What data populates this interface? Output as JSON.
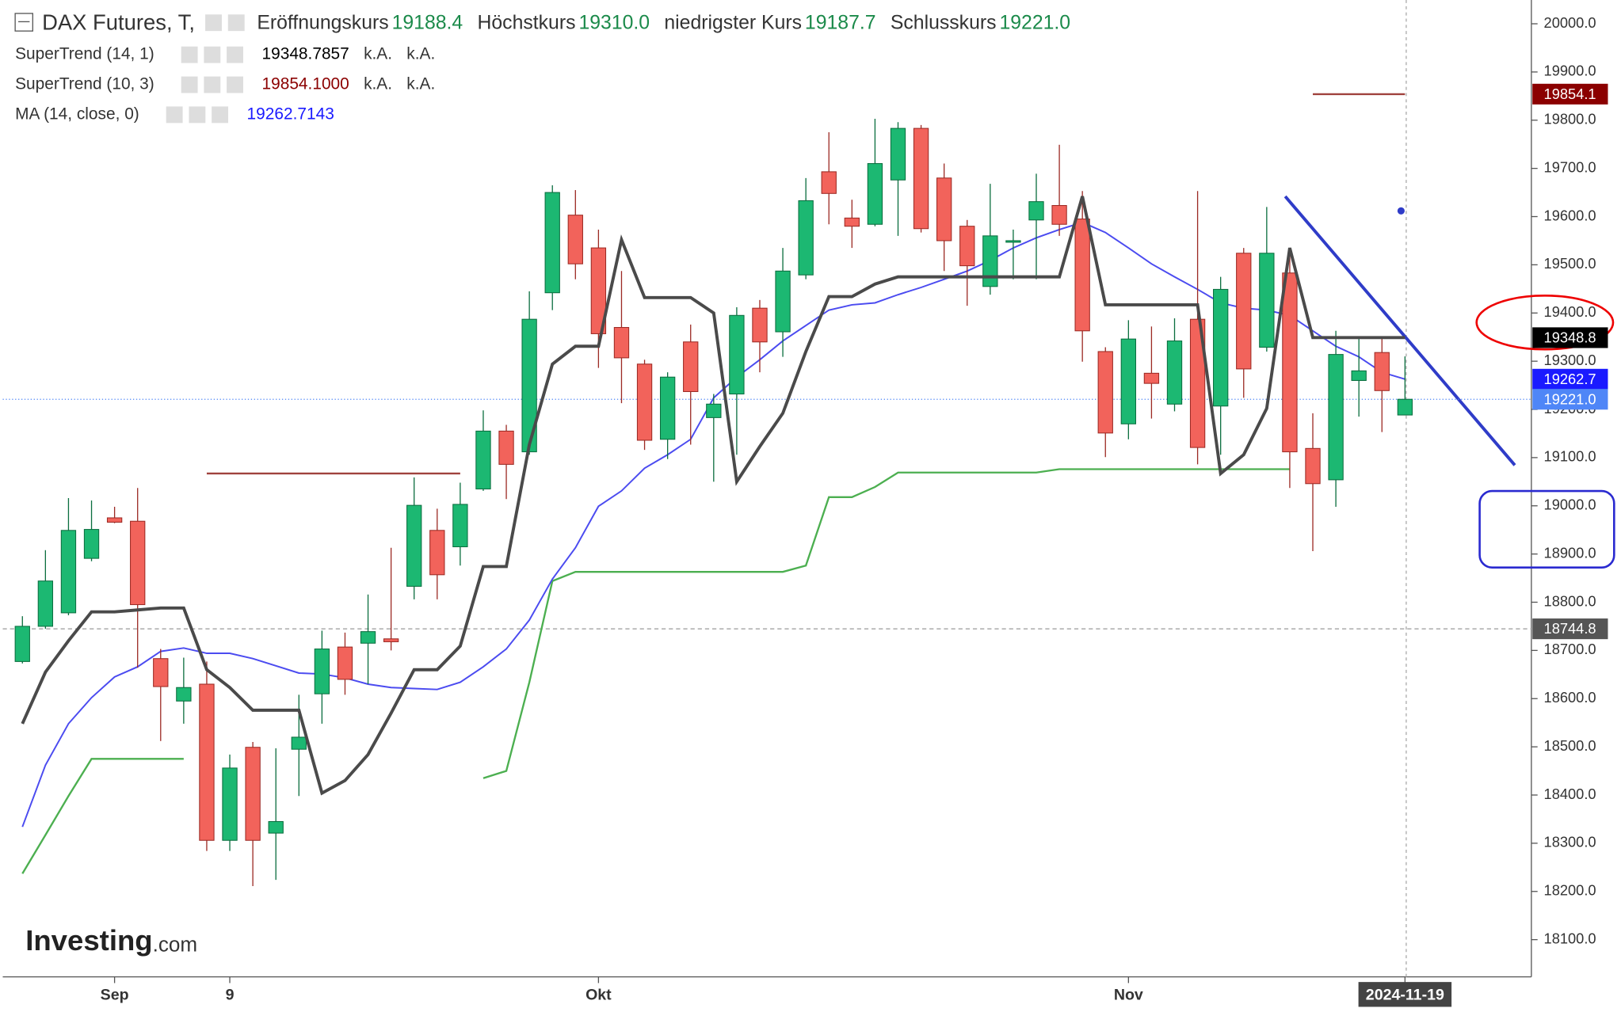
{
  "chart_data": {
    "type": "candlestick",
    "instrument": "DAX Futures, T,",
    "header": [
      {
        "label": "Eröffnungskurs",
        "value": "19188.4"
      },
      {
        "label": "Höchstkurs",
        "value": "19310.0"
      },
      {
        "label": "niedrigster Kurs",
        "value": "19187.7"
      },
      {
        "label": "Schlusskurs",
        "value": "19221.0"
      }
    ],
    "categories": [
      null,
      null,
      null,
      null,
      "Sep",
      null,
      null,
      null,
      null,
      "9",
      null,
      null,
      null,
      null,
      null,
      null,
      null,
      null,
      null,
      null,
      null,
      null,
      null,
      null,
      null,
      "Okt",
      null,
      null,
      null,
      null,
      null,
      null,
      null,
      null,
      null,
      null,
      null,
      null,
      null,
      null,
      null,
      null,
      null,
      null,
      null,
      null,
      null,
      null,
      "Nov",
      null,
      null,
      null,
      null,
      null,
      null,
      null,
      null,
      null,
      null,
      null,
      "2024-11-19"
    ],
    "open": [
      18677,
      18750,
      18778,
      18891,
      18975,
      18968,
      18683,
      18595,
      18630,
      18306,
      18499,
      18321,
      18495,
      18610,
      18707,
      18715,
      18724,
      18833,
      18949,
      18915,
      19035,
      19155,
      19112,
      19442,
      19603,
      19535,
      19370,
      19294,
      19138,
      19340,
      19183,
      19232,
      19410,
      19361,
      19479,
      19693,
      19597,
      19584,
      19676,
      19783,
      19680,
      19580,
      19455,
      19548,
      19593,
      19623,
      19595,
      19320,
      19170,
      19275,
      19211,
      19387,
      19207,
      19524,
      19329,
      19483,
      19119,
      19054,
      19260,
      19318,
      19188.4
    ],
    "high": [
      18771,
      18908,
      19016,
      19011,
      18998,
      19037,
      18703,
      18685,
      18677,
      18484,
      18510,
      18497,
      18608,
      18741,
      18737,
      18816,
      18913,
      19059,
      18994,
      19048,
      19198,
      19168,
      19445,
      19665,
      19655,
      19573,
      19487,
      19303,
      19277,
      19376,
      19232,
      19412,
      19427,
      19535,
      19680,
      19775,
      19635,
      19803,
      19796,
      19790,
      19710,
      19593,
      19668,
      19573,
      19689,
      19749,
      19653,
      19329,
      19385,
      19372,
      19389,
      19653,
      19475,
      19535,
      19620,
      19535,
      19192,
      19363,
      19352,
      19352,
      19310
    ],
    "low": [
      18673,
      18745,
      18773,
      18885,
      18964,
      18664,
      18512,
      18548,
      18284,
      18284,
      18211,
      18224,
      18398,
      18548,
      18608,
      18630,
      18700,
      18806,
      18806,
      18876,
      19031,
      19014,
      19106,
      19406,
      19470,
      19286,
      19213,
      19116,
      19097,
      19127,
      19050,
      19106,
      19277,
      19309,
      19470,
      19584,
      19535,
      19580,
      19560,
      19567,
      19487,
      19415,
      19438,
      19470,
      19470,
      19560,
      19299,
      19101,
      19138,
      19181,
      19196,
      19086,
      19106,
      19224,
      19320,
      19037,
      18906,
      18998,
      19185,
      19153,
      19187.7
    ],
    "close": [
      18750,
      18844,
      18949,
      18951,
      18966,
      18795,
      18625,
      18623,
      18306,
      18456,
      18306,
      18345,
      18520,
      18703,
      18640,
      18739,
      18718,
      19001,
      18857,
      19003,
      19155,
      19086,
      19387,
      19650,
      19502,
      19357,
      19307,
      19136,
      19267,
      19237,
      19211,
      19395,
      19340,
      19487,
      19633,
      19648,
      19580,
      19710,
      19783,
      19575,
      19550,
      19498,
      19560,
      19550,
      19631,
      19584,
      19363,
      19151,
      19346,
      19254,
      19342,
      19121,
      19449,
      19284,
      19524,
      19112,
      19046,
      19314,
      19280,
      19239,
      19221
    ],
    "up_color": "#1cb872",
    "down_color": "#f2635b",
    "indicators": [
      {
        "name": "SuperTrend (14, 1)",
        "legend_value": "19348.7857",
        "legend_extra": [
          "k.A.",
          "k.A."
        ],
        "color": "#4a4a4a",
        "values": [
          18548,
          18655,
          18720,
          18780,
          18780,
          18784,
          18788,
          18788,
          18660,
          18623,
          18576,
          18576,
          18576,
          18404,
          18430,
          18484,
          18570,
          18660,
          18660,
          18709,
          18874,
          18874,
          19127,
          19294,
          19331,
          19331,
          19552,
          19432,
          19432,
          19432,
          19400,
          19050,
          19123,
          19192,
          19320,
          19434,
          19434,
          19460,
          19475,
          19475,
          19475,
          19475,
          19475,
          19475,
          19475,
          19475,
          19642,
          19417,
          19417,
          19417,
          19417,
          19417,
          19067,
          19106,
          19202,
          19535,
          19349,
          19349,
          19349,
          19349,
          19349
        ]
      },
      {
        "name": "SuperTrend (10, 3)",
        "legend_value": "19854.1000",
        "legend_extra": [
          "k.A.",
          "k.A."
        ],
        "color": "#a0423d",
        "values": [
          null,
          null,
          null,
          null,
          null,
          null,
          null,
          null,
          19067,
          19067,
          19067,
          19067,
          19067,
          19067,
          19067,
          19067,
          19067,
          19067,
          19067,
          19067,
          null,
          null,
          null,
          null,
          null,
          null,
          null,
          null,
          null,
          null,
          null,
          null,
          null,
          null,
          null,
          null,
          null,
          null,
          null,
          null,
          null,
          null,
          null,
          null,
          null,
          null,
          null,
          null,
          null,
          null,
          null,
          null,
          null,
          null,
          null,
          null,
          19854,
          19854,
          19854,
          19854,
          19854
        ],
        "up_color": "#4caf50",
        "up_values": [
          18237,
          18317,
          18398,
          18475,
          18475,
          18475,
          18475,
          18475,
          null,
          null,
          null,
          null,
          null,
          null,
          null,
          null,
          null,
          null,
          null,
          null,
          18435,
          18450,
          18634,
          18844,
          18863,
          18863,
          18863,
          18863,
          18863,
          18863,
          18863,
          18863,
          18863,
          18863,
          18876,
          19018,
          19018,
          19039,
          19069,
          19069,
          19069,
          19069,
          19069,
          19069,
          19069,
          19076,
          19076,
          19076,
          19076,
          19076,
          19076,
          19076,
          19076,
          19076,
          19076,
          19076,
          null,
          null,
          null,
          null,
          null
        ]
      },
      {
        "name": "MA (14, close, 0)",
        "legend_value": "19262.7143",
        "color": "#4b4bf0",
        "values": [
          18334,
          18462,
          18548,
          18602,
          18645,
          18666,
          18698,
          18705,
          18694,
          18694,
          18683,
          18668,
          18653,
          18651,
          18643,
          18630,
          18623,
          18621,
          18619,
          18634,
          18666,
          18703,
          18763,
          18848,
          18913,
          18999,
          19031,
          19078,
          19106,
          19138,
          19224,
          19267,
          19303,
          19342,
          19374,
          19406,
          19417,
          19421,
          19438,
          19453,
          19470,
          19487,
          19509,
          19535,
          19556,
          19573,
          19588,
          19567,
          19535,
          19502,
          19475,
          19449,
          19421,
          19410,
          19406,
          19395,
          19363,
          19331,
          19309,
          19277,
          19262.7143
        ]
      }
    ],
    "price_labels": [
      {
        "value": 19854.1,
        "label": "19854.1",
        "color": "#8b0000"
      },
      {
        "value": 19348.8,
        "label": "19348.8",
        "color": "#000000"
      },
      {
        "value": 19262.7,
        "label": "19262.7",
        "color": "#1a1aff"
      },
      {
        "value": 19221.0,
        "label": "19221.0",
        "color": "#4f86f7"
      },
      {
        "value": 18744.8,
        "label": "18744.8",
        "color": "#555555"
      }
    ],
    "ylim": [
      18022.8,
      20038.6
    ],
    "yticks": [
      {
        "value": 18100,
        "label": "18100.0"
      },
      {
        "value": 18200,
        "label": "18200.0"
      },
      {
        "value": 18300,
        "label": "18300.0"
      },
      {
        "value": 18400,
        "label": "18400.0"
      },
      {
        "value": 18500,
        "label": "18500.0"
      },
      {
        "value": 18600,
        "label": "18600.0"
      },
      {
        "value": 18700,
        "label": "18700.0"
      },
      {
        "value": 18800,
        "label": "18800.0"
      },
      {
        "value": 18900,
        "label": "18900.0"
      },
      {
        "value": 19000,
        "label": "19000.0"
      },
      {
        "value": 19100,
        "label": "19100.0"
      },
      {
        "value": 19200,
        "label": "19200.0"
      },
      {
        "value": 19300,
        "label": "19300.0"
      },
      {
        "value": 19400,
        "label": "19400.0"
      },
      {
        "value": 19500,
        "label": "19500.0"
      },
      {
        "value": 19600,
        "label": "19600.0"
      },
      {
        "value": 19700,
        "label": "19700.0"
      },
      {
        "value": 19800,
        "label": "19800.0"
      },
      {
        "value": 19900,
        "label": "19900.0"
      },
      {
        "value": 20000,
        "label": "20000.0"
      }
    ],
    "logo": {
      "main": "Investing",
      "suffix": ".com"
    }
  }
}
